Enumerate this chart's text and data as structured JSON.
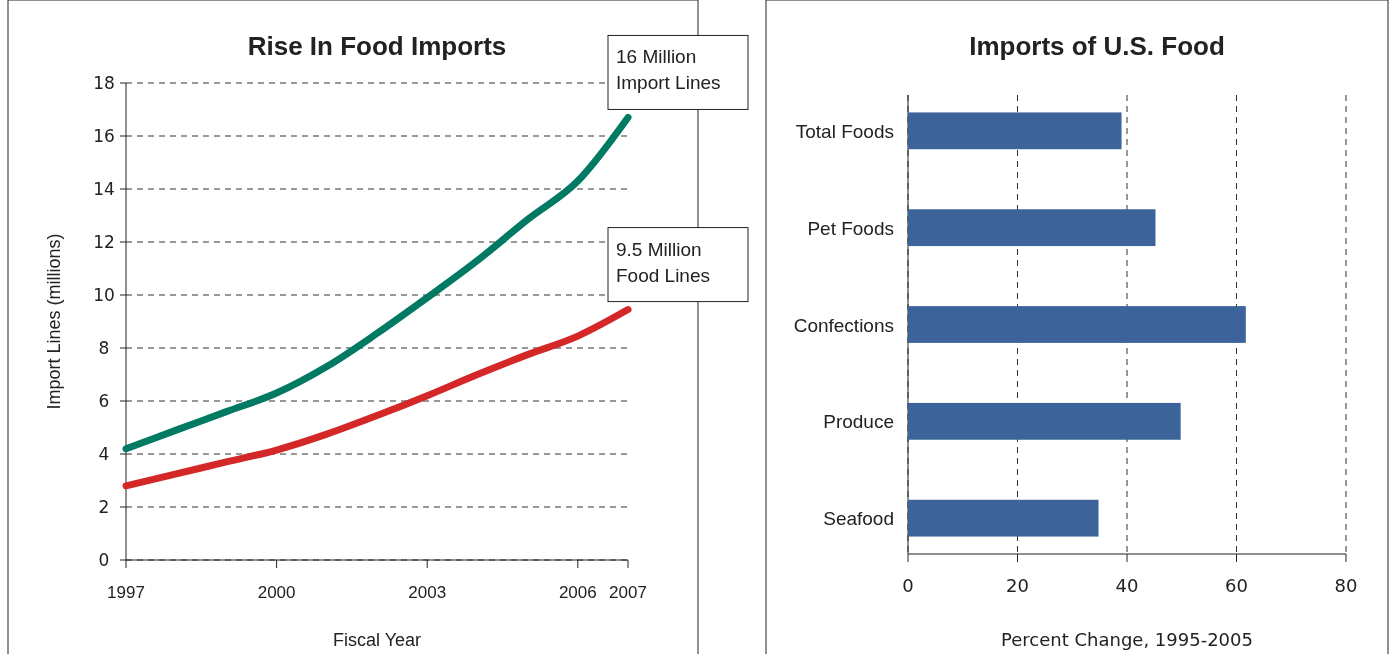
{
  "chart_data": [
    {
      "type": "line",
      "title": "Rise In Food Imports",
      "xlabel": "Fiscal Year",
      "ylabel": "Import Lines (millions)",
      "x": [
        1997,
        1998,
        1999,
        2000,
        2001,
        2002,
        2003,
        2004,
        2005,
        2006,
        2007
      ],
      "series": [
        {
          "color": "#007a63",
          "values": [
            4.2,
            4.9,
            5.6,
            6.3,
            7.3,
            8.55,
            9.9,
            11.3,
            12.85,
            14.3,
            16.7
          ]
        },
        {
          "color": "#d42828",
          "values": [
            2.8,
            3.25,
            3.7,
            4.15,
            4.75,
            5.45,
            6.2,
            7.0,
            7.75,
            8.45,
            9.45
          ]
        }
      ],
      "xlim": [
        1997,
        2007
      ],
      "xticks": [
        1997,
        2000,
        2003,
        2006,
        2007
      ],
      "ylim": [
        0,
        18
      ],
      "yticks": [
        0,
        2,
        4,
        6,
        8,
        10,
        12,
        14,
        16,
        18
      ],
      "grid": "y",
      "annotations": [
        {
          "text": "16 Million\nImport Lines",
          "x": 2007,
          "y": 16.7
        },
        {
          "text": "9.5 Million\nFood Lines",
          "x": 2007,
          "y": 9.45
        }
      ]
    },
    {
      "type": "bar",
      "orientation": "horizontal",
      "title": "Imports of U.S. Food",
      "xlabel": "Percent Change, 1995-2005",
      "categories": [
        "Total Foods",
        "Pet Foods",
        "Confections",
        "Produce",
        "Seafood"
      ],
      "values": [
        39,
        45.2,
        61.7,
        49.8,
        34.8
      ],
      "color": "#3c649b",
      "xlim": [
        0,
        80
      ],
      "xticks": [
        0,
        20,
        40,
        60,
        80
      ],
      "grid": "x"
    }
  ]
}
